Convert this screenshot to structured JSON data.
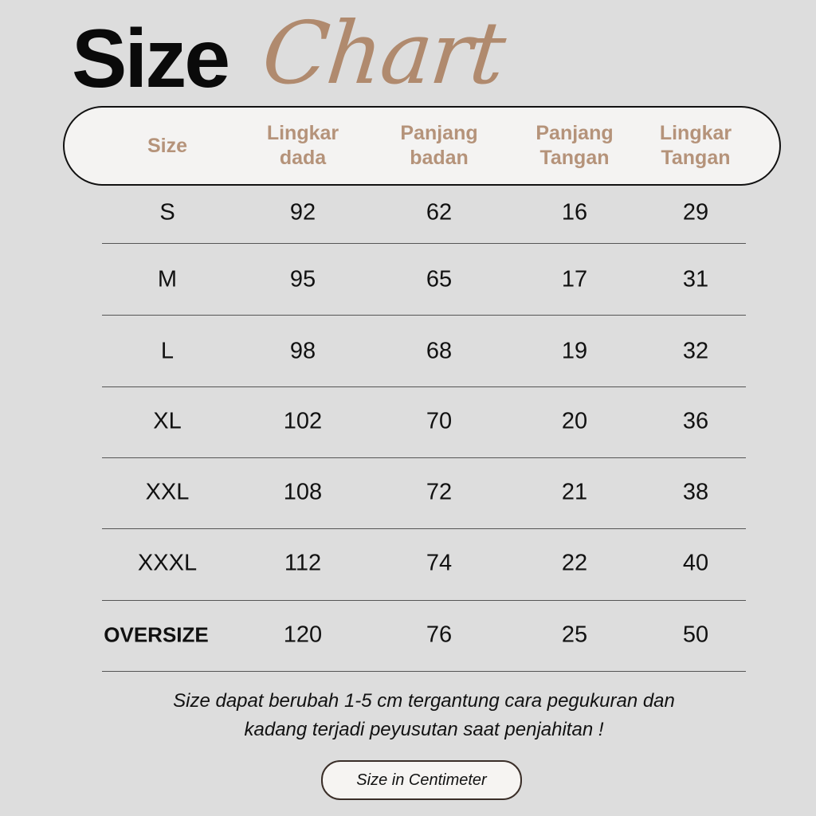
{
  "title": {
    "bold": "Size",
    "script": "Chart"
  },
  "colors": {
    "accent": "#b08a6e",
    "header_text": "#b5937a",
    "background": "#dddddd"
  },
  "table": {
    "headers": [
      "Size",
      "Lingkar\ndada",
      "Panjang\nbadan",
      "Panjang\nTangan",
      "Lingkar\nTangan"
    ],
    "rows": [
      [
        "S",
        "92",
        "62",
        "16",
        "29"
      ],
      [
        "M",
        "95",
        "65",
        "17",
        "31"
      ],
      [
        "L",
        "98",
        "68",
        "19",
        "32"
      ],
      [
        "XL",
        "102",
        "70",
        "20",
        "36"
      ],
      [
        "XXL",
        "108",
        "72",
        "21",
        "38"
      ],
      [
        "XXXL",
        "112",
        "74",
        "22",
        "40"
      ],
      [
        "OVERSIZE",
        "120",
        "76",
        "25",
        "50"
      ]
    ]
  },
  "note": {
    "line1": "Size dapat berubah 1-5 cm tergantung cara pegukuran dan",
    "line2": "kadang terjadi peyusutan saat penjahitan !"
  },
  "unit_label": "Size in Centimeter"
}
